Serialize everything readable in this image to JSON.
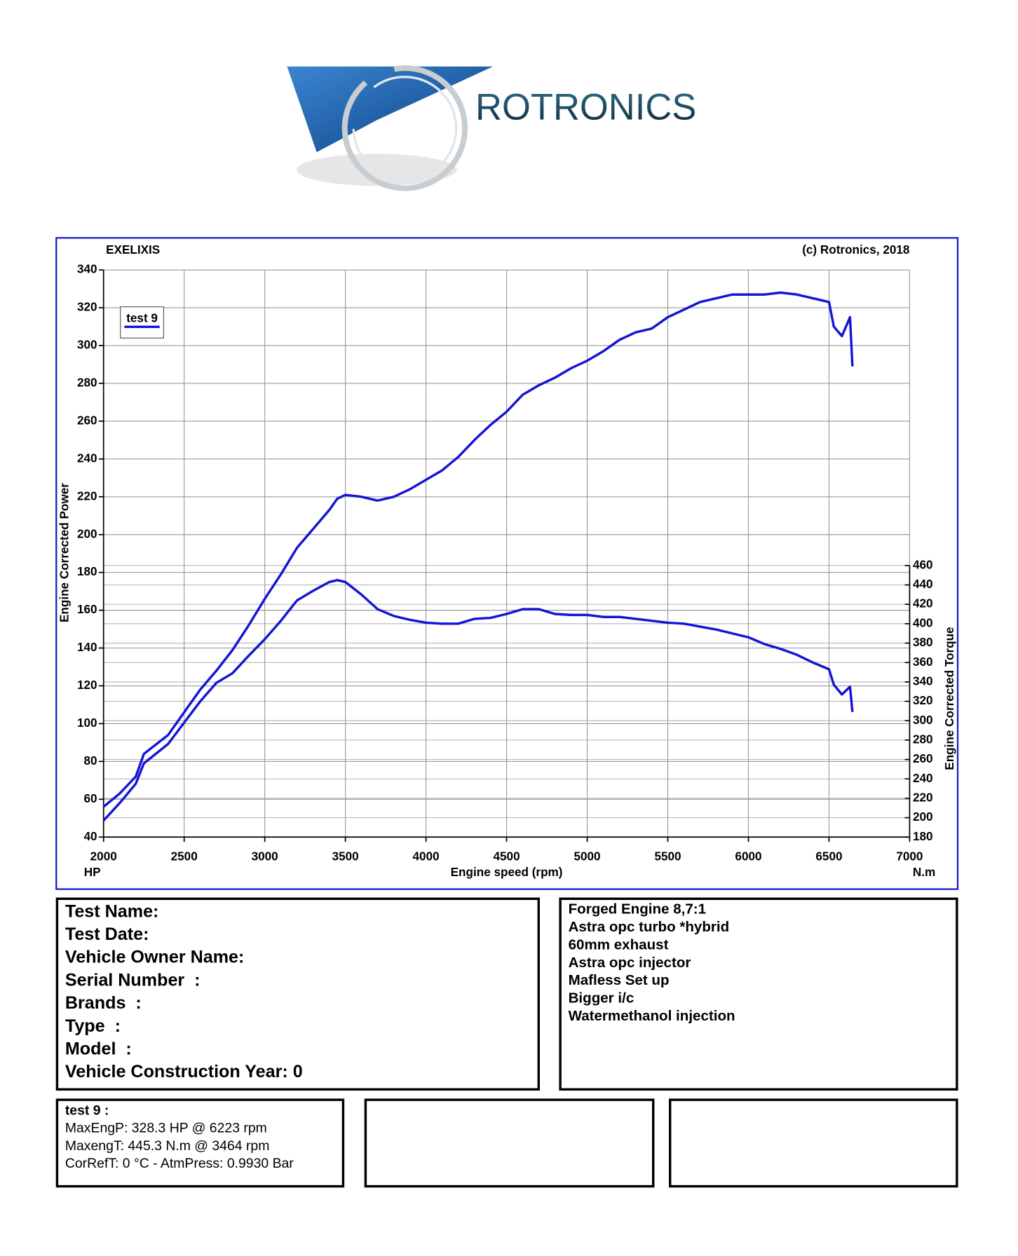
{
  "logo": "ROTRONICS",
  "chart_data": {
    "type": "line",
    "title": "EXELIXIS",
    "subtitle": "(c) Rotronics, 2018",
    "x_label": "Engine speed (rpm)",
    "y_label": "Engine Corrected Power",
    "y2_label": "Engine Corrected Torque",
    "y_unit": "HP",
    "y2_unit": "N.m",
    "x": [
      2000,
      2100,
      2200,
      2250,
      2400,
      2500,
      2600,
      2700,
      2800,
      2900,
      3000,
      3100,
      3200,
      3300,
      3400,
      3450,
      3500,
      3600,
      3700,
      3800,
      3900,
      4000,
      4100,
      4200,
      4300,
      4400,
      4500,
      4600,
      4700,
      4800,
      4900,
      5000,
      5100,
      5200,
      5300,
      5400,
      5500,
      5600,
      5700,
      5800,
      5900,
      6000,
      6100,
      6200,
      6300,
      6400,
      6500,
      6530,
      6580,
      6630,
      6645
    ],
    "series": [
      {
        "name": "test 9",
        "color": "#1414d4",
        "values": [
          56,
          63,
          72,
          84,
          94,
          106,
          118,
          128,
          139,
          152,
          166,
          179,
          193,
          203,
          213,
          219,
          221,
          220,
          218,
          220,
          224,
          229,
          234,
          241,
          250,
          258,
          265,
          274,
          279,
          283,
          288,
          292,
          297,
          303,
          307,
          309,
          315,
          319,
          323,
          325,
          327,
          327,
          327,
          328,
          327,
          325,
          323,
          310,
          305,
          315,
          289
        ]
      },
      {
        "color": "#1414d4",
        "axis": "y2",
        "values": [
          197,
          215,
          235,
          256,
          276,
          298,
          320,
          339,
          349,
          367,
          384,
          403,
          424,
          434,
          443,
          445,
          443,
          430,
          415,
          408,
          404,
          401,
          400,
          400,
          405,
          406,
          410,
          415,
          415,
          410,
          409,
          409,
          407,
          407,
          405,
          403,
          401,
          400,
          397,
          394,
          390,
          386,
          379,
          374,
          368,
          360,
          353,
          337,
          327,
          335,
          309
        ]
      }
    ],
    "xlim": [
      2000,
      7000
    ],
    "xticks": [
      2000,
      2500,
      3000,
      3500,
      4000,
      4500,
      5000,
      5500,
      6000,
      6500,
      7000
    ],
    "ylim": [
      40,
      340
    ],
    "yticks": [
      40,
      60,
      80,
      100,
      120,
      140,
      160,
      180,
      200,
      220,
      240,
      260,
      280,
      300,
      320,
      340
    ],
    "y2lim": [
      180,
      460
    ],
    "y2ticks": [
      180,
      200,
      220,
      240,
      260,
      280,
      300,
      320,
      340,
      360,
      380,
      400,
      420,
      440,
      460
    ],
    "grid": true,
    "legend": "upper left"
  },
  "vehicle": {
    "fields": [
      "Test Name:",
      "Test Date:",
      "Vehicle Owner Name:",
      "Serial Number  :",
      "Brands  :",
      "Type  :",
      "Model  :",
      "Vehicle Construction Year: 0"
    ]
  },
  "notes": [
    "Forged Engine 8,7:1",
    "Astra opc turbo *hybrid",
    "60mm exhaust",
    "Astra opc injector",
    "Mafless Set up",
    "Bigger i/c",
    "Watermethanol injection"
  ],
  "results": {
    "title": "test 9 :",
    "lines": [
      "MaxEngP: 328.3 HP @ 6223 rpm",
      "MaxengT: 445.3 N.m @ 3464 rpm",
      "CorRefT: 0 °C - AtmPress: 0.9930 Bar"
    ]
  }
}
